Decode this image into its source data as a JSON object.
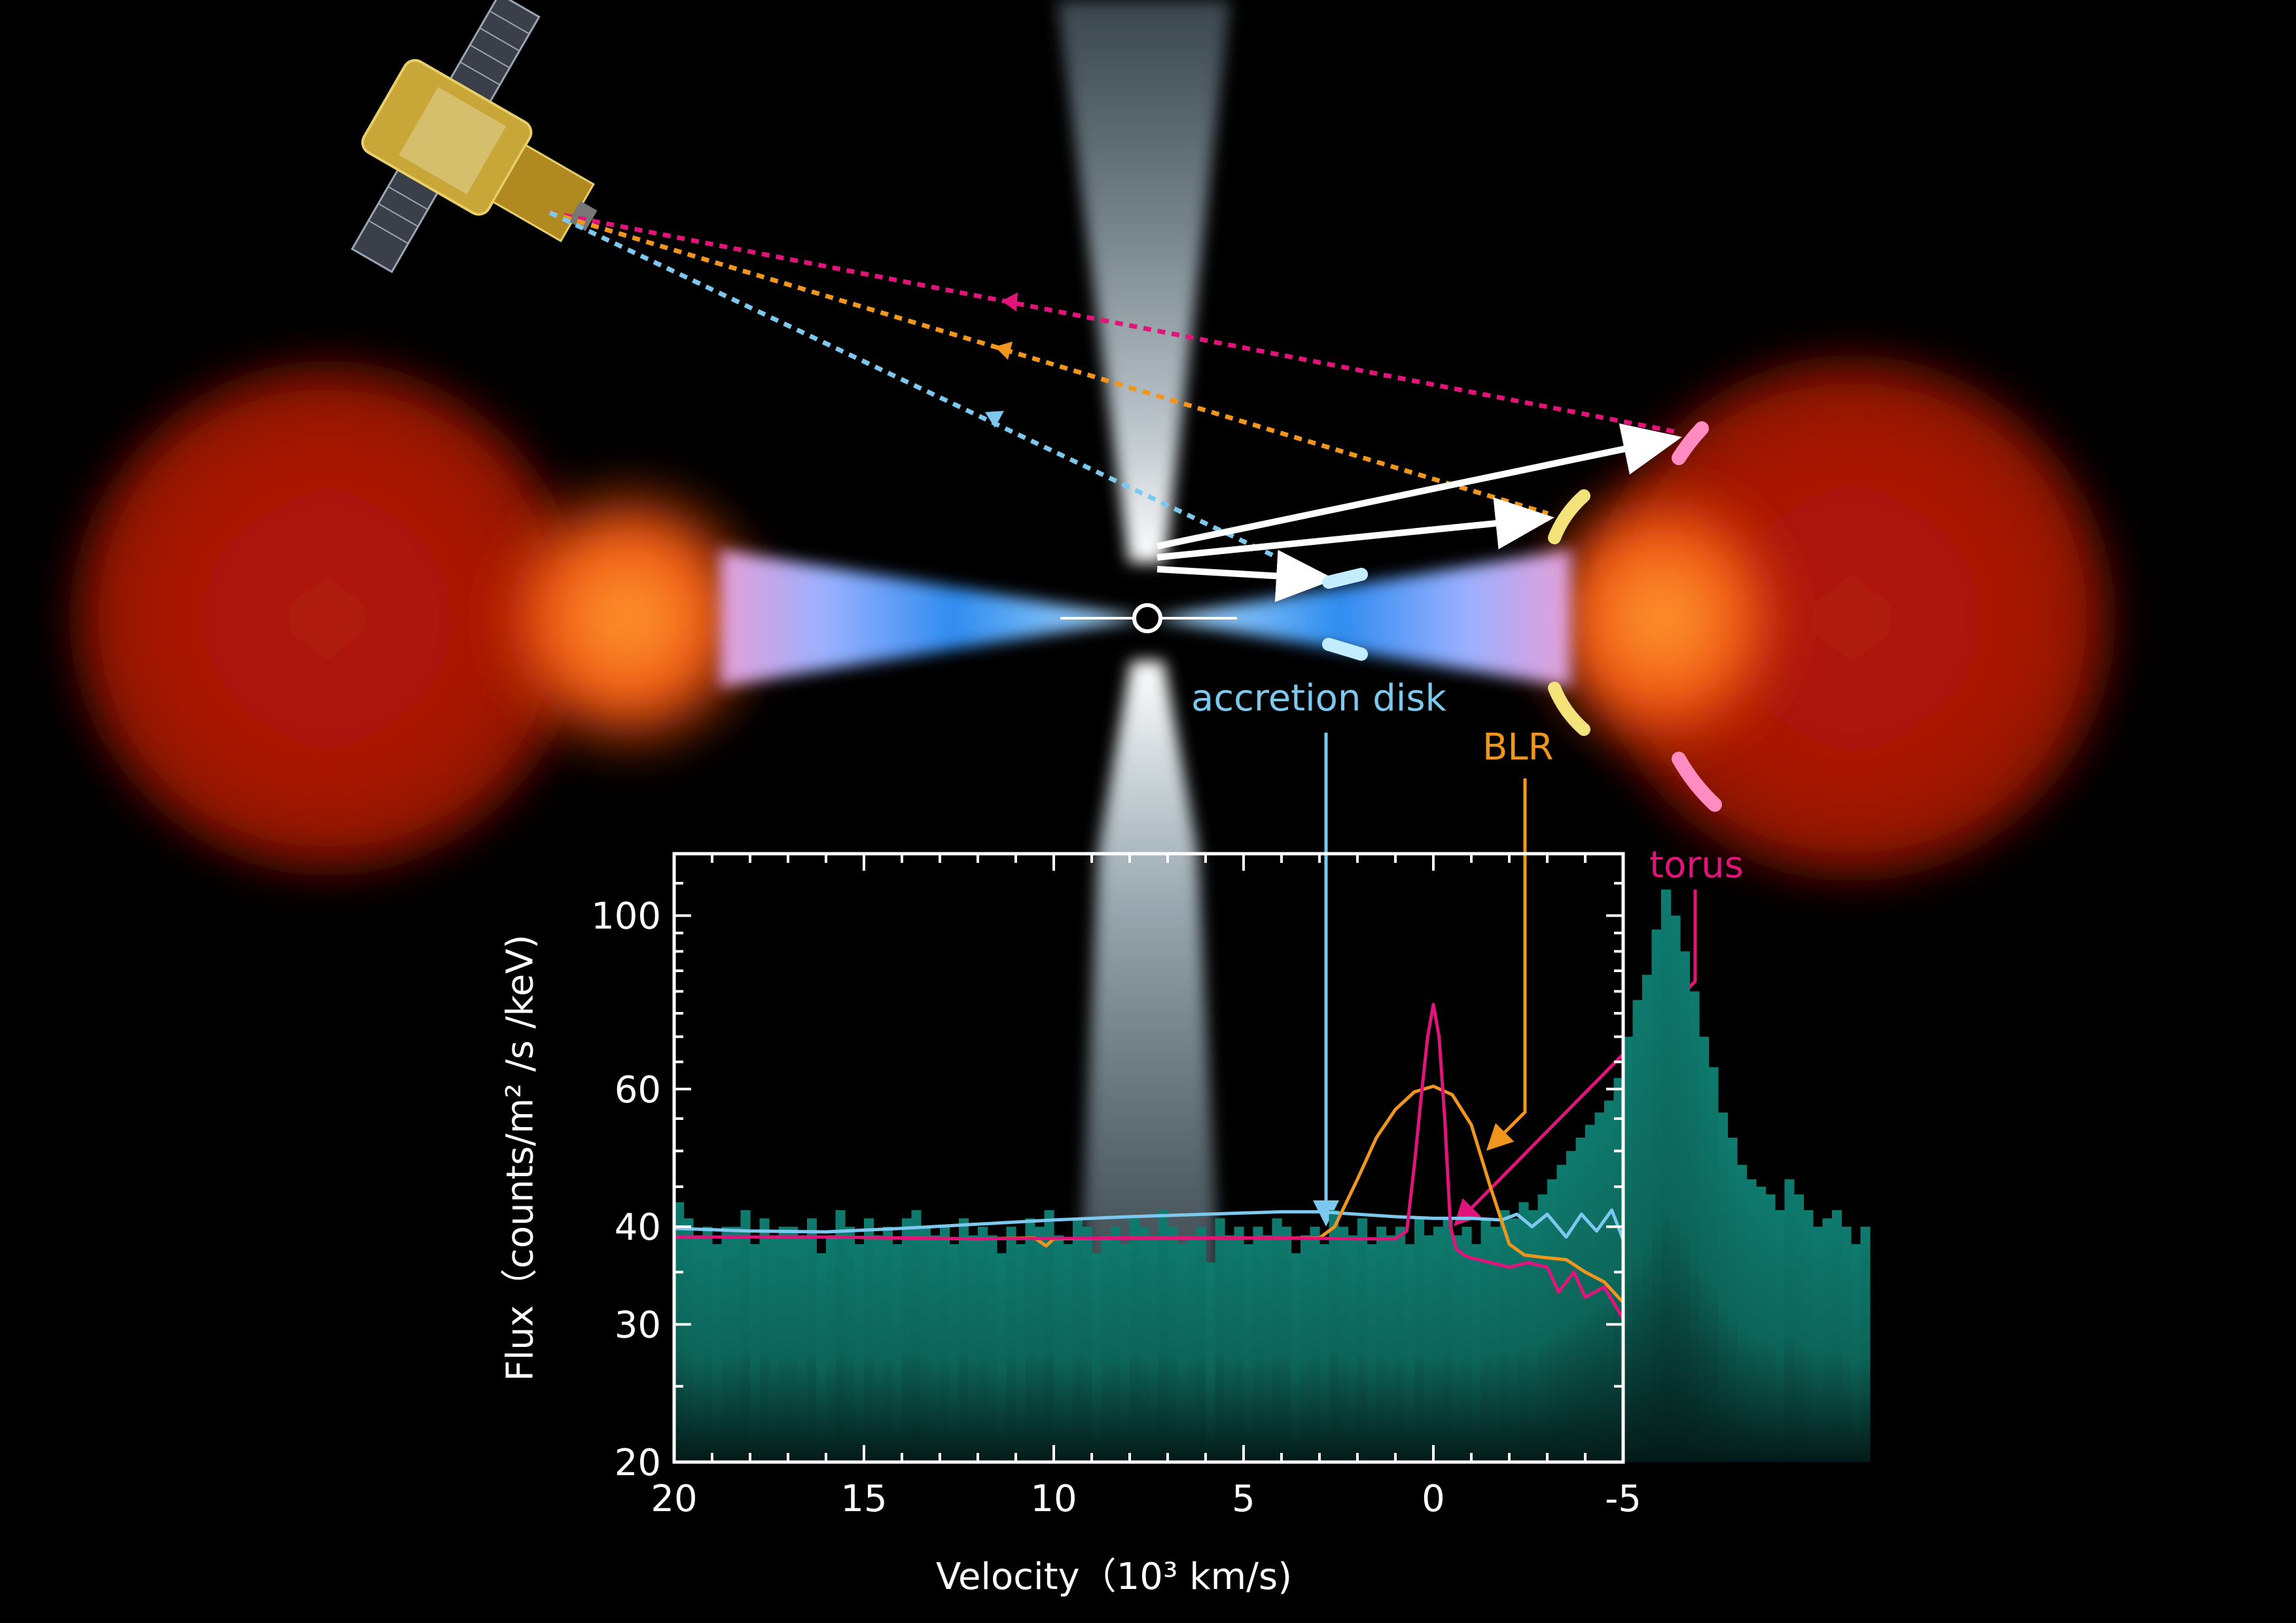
{
  "labels": {
    "accretion_disk": "accretion disk",
    "blr": "BLR",
    "torus": "torus"
  },
  "colors": {
    "accretion_disk": "#7cc8ee",
    "blr": "#f0961e",
    "torus": "#e0147a",
    "histogram": "#0f7a6e",
    "background": "#000000",
    "axes": "#ffffff"
  },
  "chart_data": {
    "type": "bar",
    "xlabel": "Velocity（10³ km/s)",
    "ylabel": "Flux（counts/m² /s /keV)",
    "xlim": [
      20,
      -5
    ],
    "ylim": [
      20,
      120
    ],
    "yscale": "log",
    "x_ticks": [
      20,
      15,
      10,
      5,
      0,
      -5
    ],
    "x_tick_labels": [
      "20",
      "15",
      "10",
      "5",
      "0",
      "-5"
    ],
    "y_ticks": [
      20,
      30,
      40,
      60,
      100
    ],
    "y_tick_labels": [
      "20",
      "30",
      "40",
      "60",
      "100"
    ],
    "grid": false,
    "histogram": {
      "bin_width": 0.25,
      "x_start": 20,
      "values": [
        43,
        41,
        39,
        40,
        38,
        40,
        40,
        42,
        38,
        41,
        39,
        40,
        40,
        39,
        41,
        37,
        39,
        42,
        40,
        38,
        41,
        39,
        40,
        38,
        41,
        42,
        40,
        39,
        40,
        38,
        41,
        39,
        40,
        39,
        37,
        40,
        38,
        41,
        40,
        42,
        39,
        38,
        41,
        40,
        37,
        39,
        40,
        38,
        41,
        40,
        39,
        42,
        40,
        38,
        39,
        40,
        36,
        41,
        39,
        40,
        38,
        40,
        39,
        41,
        40,
        37,
        39,
        40,
        38,
        42,
        40,
        39,
        41,
        38,
        40,
        39,
        40,
        38,
        41,
        39,
        40,
        41,
        39,
        40,
        38,
        41,
        40,
        42,
        41,
        43,
        42,
        44,
        46,
        48,
        50,
        52,
        54,
        56,
        58,
        62,
        70,
        78,
        84,
        96,
        108,
        100,
        90,
        80,
        70,
        64,
        56,
        52,
        48,
        46,
        45,
        44,
        42,
        46,
        44,
        42,
        40,
        41,
        42,
        40,
        38,
        40
      ]
    },
    "series": [
      {
        "name": "accretion disk",
        "x": [
          20,
          18,
          16,
          14,
          12,
          10,
          8,
          6,
          4,
          3,
          2,
          1,
          0,
          -1,
          -1.8,
          -2.2,
          -2.6,
          -3,
          -3.5,
          -3.9,
          -4.3,
          -4.7,
          -5
        ],
        "y": [
          39.8,
          39.5,
          39.4,
          39.8,
          40.3,
          40.8,
          41.2,
          41.5,
          41.8,
          41.8,
          41.5,
          41.2,
          41.0,
          41.0,
          40.8,
          41.5,
          40.0,
          41.5,
          38.8,
          41.5,
          39.5,
          42.0,
          38.5
        ]
      },
      {
        "name": "BLR",
        "x": [
          20,
          16,
          12,
          10.5,
          10.2,
          10,
          8,
          6,
          4,
          3,
          2.6,
          2,
          1.5,
          1,
          0.5,
          0,
          -0.5,
          -1,
          -1.5,
          -2,
          -2.4,
          -3,
          -3.5,
          -4,
          -4.5,
          -5
        ],
        "y": [
          38.8,
          38.8,
          38.6,
          38.7,
          37.8,
          38.6,
          38.7,
          38.7,
          38.7,
          38.7,
          40.0,
          46.0,
          52.0,
          56.5,
          59.5,
          60.5,
          59.0,
          54.0,
          45.0,
          38.0,
          36.8,
          36.5,
          36.3,
          35.0,
          34.0,
          32.0
        ]
      },
      {
        "name": "torus",
        "x": [
          20,
          16,
          12,
          8,
          4,
          2,
          1,
          0.7,
          0.5,
          0.3,
          0.15,
          0,
          -0.15,
          -0.3,
          -0.45,
          -0.6,
          -0.8,
          -1,
          -1.5,
          -2,
          -2.5,
          -3,
          -3.3,
          -3.7,
          -4,
          -4.5,
          -5
        ],
        "y": [
          38.8,
          38.8,
          38.6,
          38.7,
          38.7,
          38.6,
          38.6,
          39.5,
          48.0,
          60.0,
          70.0,
          77.0,
          70.0,
          55.0,
          40.0,
          37.5,
          36.8,
          36.5,
          36.0,
          35.5,
          36.0,
          35.5,
          33.0,
          35.0,
          32.5,
          33.5,
          30.5
        ]
      }
    ]
  }
}
